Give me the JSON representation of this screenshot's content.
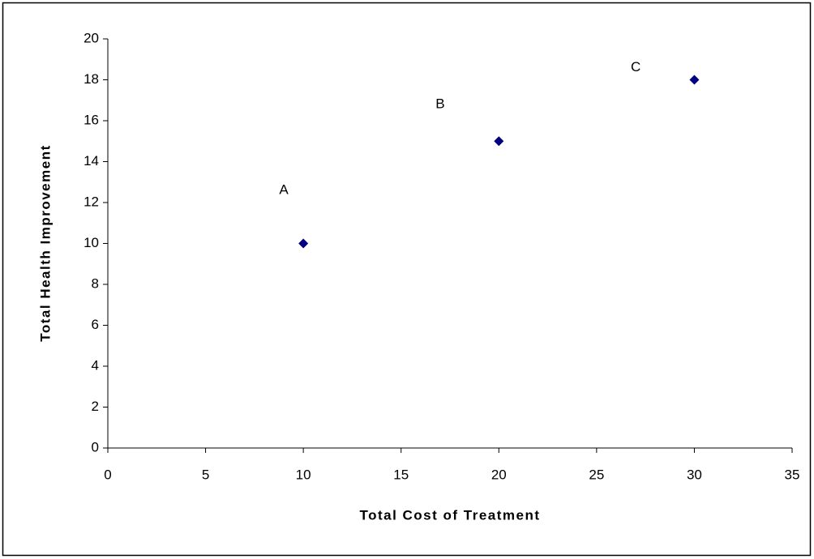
{
  "chart_data": {
    "type": "scatter",
    "x_label": "Total Cost of Treatment",
    "y_label": "Total Health Improvement",
    "series": [
      {
        "color": "#000080",
        "x": [
          10,
          20,
          30
        ],
        "values": [
          10,
          15,
          18
        ]
      }
    ],
    "annotations": [
      {
        "text": "A",
        "x": 9,
        "y": 12.6
      },
      {
        "text": "B",
        "x": 17,
        "y": 16.8
      },
      {
        "text": "C",
        "x": 27,
        "y": 18.6
      }
    ],
    "xlim": [
      0,
      35
    ],
    "xticks": [
      0,
      5,
      10,
      15,
      20,
      25,
      30,
      35
    ],
    "ylim": [
      0,
      20
    ],
    "yticks": [
      0,
      2,
      4,
      6,
      8,
      10,
      12,
      14,
      16,
      18,
      20
    ],
    "grid": false
  }
}
